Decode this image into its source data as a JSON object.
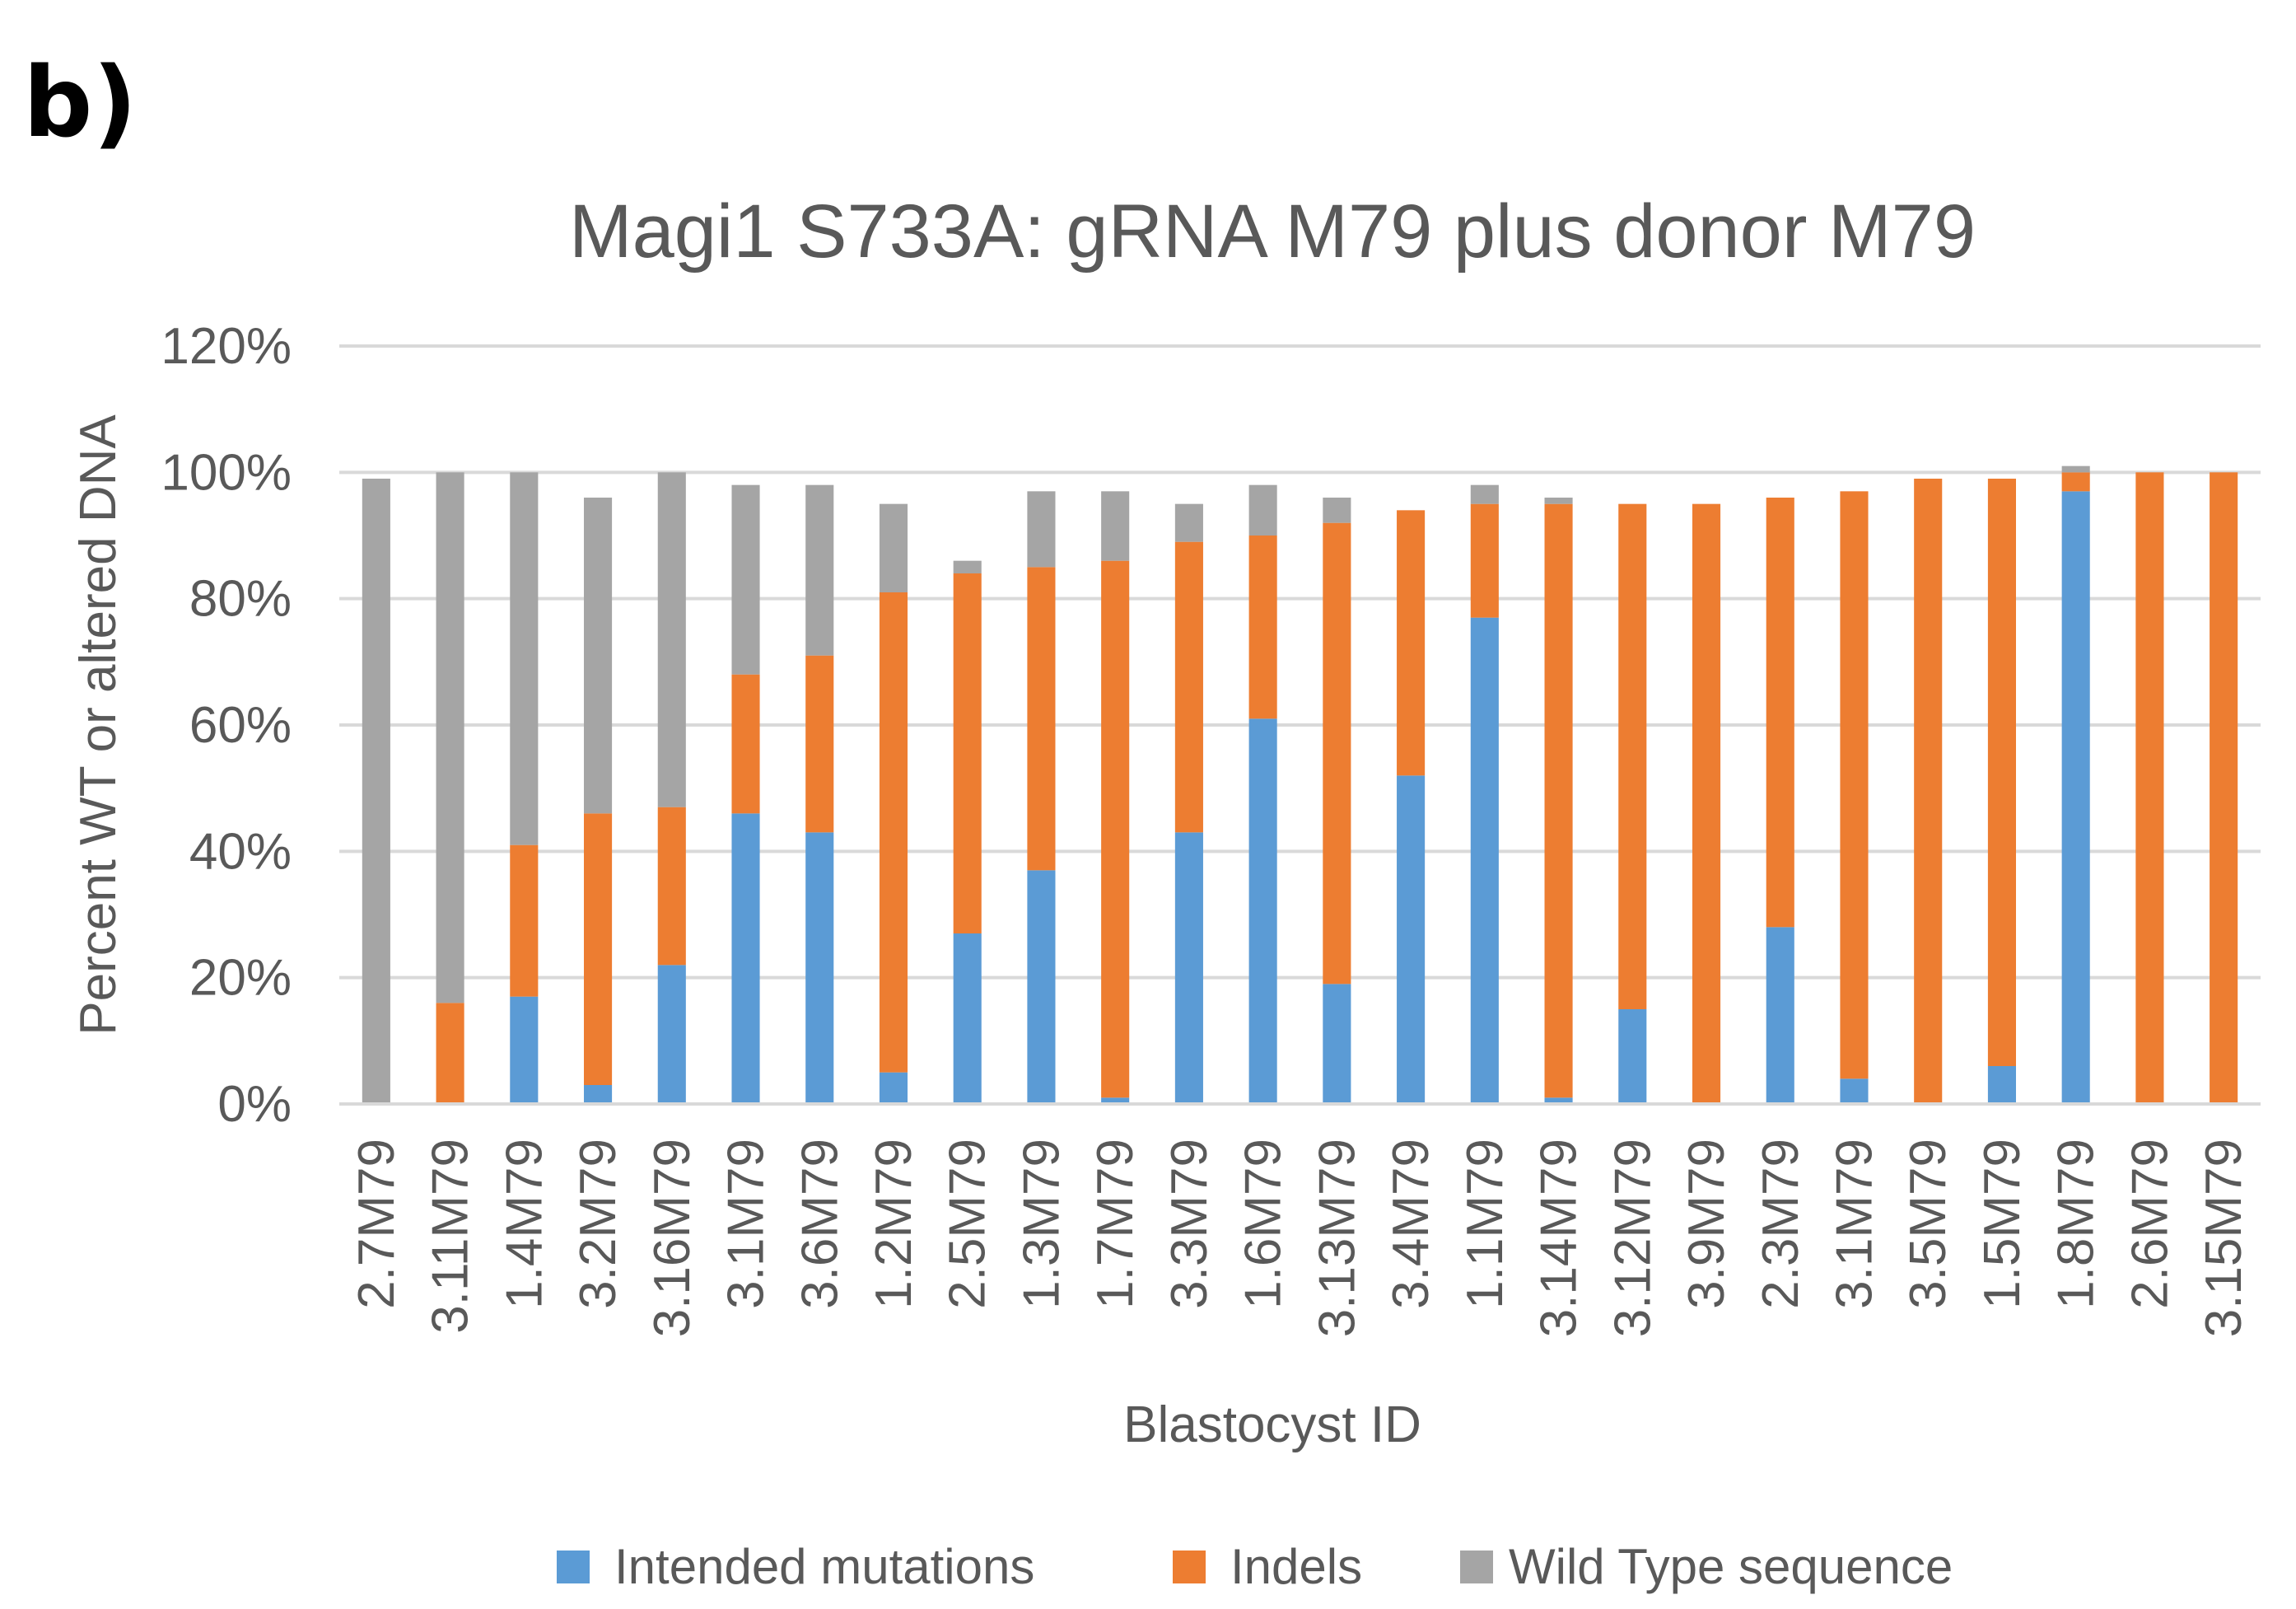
{
  "panel_label": "b)",
  "chart_data": {
    "type": "bar",
    "stacked": true,
    "title": "Magi1 S733A: gRNA M79 plus donor M79",
    "xlabel": "Blastocyst ID",
    "ylabel": "Percent WT or altered DNA",
    "ylim": [
      0,
      120
    ],
    "y_ticks": [
      "0%",
      "20%",
      "40%",
      "60%",
      "80%",
      "100%",
      "120%"
    ],
    "y_tick_values": [
      0,
      20,
      40,
      60,
      80,
      100,
      120
    ],
    "grid": true,
    "legend_position": "bottom",
    "categories": [
      "2.7M79",
      "3.11M79",
      "1.4M79",
      "3.2M79",
      "3.16M79",
      "3.1M79",
      "3.6M79",
      "1.2M79",
      "2.5M79",
      "1.3M79",
      "1.7M79",
      "3.3M79",
      "1.6M79",
      "3.13M79",
      "3.4M79",
      "1.1M79",
      "3.14M79",
      "3.12M79",
      "3.9M79",
      "2.3M79",
      "3.1M79",
      "3.5M79",
      "1.5M79",
      "1.8M79",
      "2.6M79",
      "3.15M79"
    ],
    "series": [
      {
        "name": "Intended mutations",
        "color": "#5b9bd5",
        "values": [
          0,
          0,
          17,
          3,
          22,
          46,
          43,
          5,
          27,
          37,
          1,
          43,
          61,
          19,
          52,
          77,
          1,
          15,
          0,
          28,
          4,
          0,
          6,
          97,
          0,
          0
        ]
      },
      {
        "name": "Indels",
        "color": "#ed7d31",
        "values": [
          0,
          16,
          24,
          43,
          25,
          22,
          28,
          76,
          57,
          48,
          85,
          46,
          29,
          73,
          42,
          18,
          94,
          80,
          95,
          68,
          93,
          99,
          93,
          3,
          100,
          100
        ]
      },
      {
        "name": "Wild Type sequence",
        "color": "#a5a5a5",
        "values": [
          99,
          84,
          59,
          50,
          53,
          30,
          27,
          14,
          2,
          12,
          11,
          6,
          8,
          4,
          0,
          3,
          1,
          0,
          0,
          0,
          0,
          0,
          0,
          1,
          0,
          0
        ]
      }
    ]
  },
  "colors": {
    "grid": "#d9d9d9",
    "axis": "#d9d9d9",
    "text": "#595959",
    "background": "#ffffff"
  }
}
